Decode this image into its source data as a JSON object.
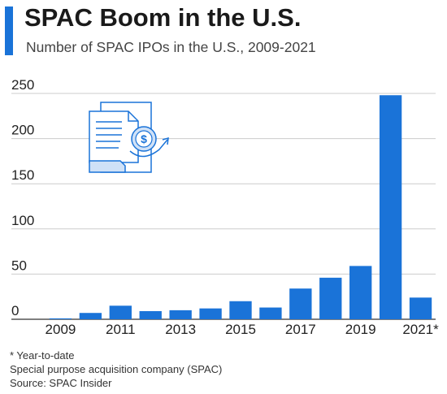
{
  "header": {
    "title": "SPAC Boom in the U.S.",
    "subtitle": "Number of SPAC IPOs in the U.S., 2009-2021"
  },
  "footer": {
    "note": "* Year-to-date",
    "definition": "Special purpose acquisition company (SPAC)",
    "source": "Source: SPAC Insider"
  },
  "colors": {
    "accent": "#1a73d8",
    "bar": "#1a73d8",
    "grid": "#cccccc",
    "icon_light": "#cfe1f7"
  },
  "illustration": {
    "icon": "document-dollar-icon"
  },
  "chart_data": {
    "type": "bar",
    "categories": [
      "2009",
      "2010",
      "2011",
      "2012",
      "2013",
      "2014",
      "2015",
      "2016",
      "2017",
      "2018",
      "2019",
      "2020",
      "2021*"
    ],
    "tick_labels": [
      "2009",
      "2011",
      "2013",
      "2015",
      "2017",
      "2019",
      "2021*"
    ],
    "values": [
      1,
      7,
      15,
      9,
      10,
      12,
      20,
      13,
      34,
      46,
      59,
      248,
      24
    ],
    "title": "SPAC Boom in the U.S.",
    "subtitle": "Number of SPAC IPOs in the U.S., 2009-2021",
    "ylim": [
      0,
      250
    ],
    "yticks": [
      0,
      50,
      100,
      150,
      200,
      250
    ],
    "grid": true
  }
}
